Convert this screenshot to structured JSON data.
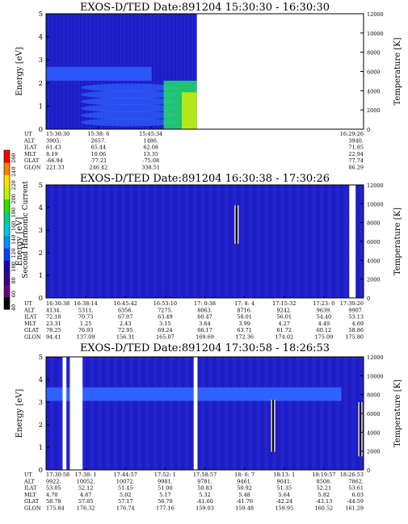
{
  "colors": {
    "panel_bg": "#2323cf",
    "panel_dark": "#1414a8",
    "band": "#2f62ff",
    "hot": "#22dd66",
    "white": "#ffffff",
    "black": "#000000"
  },
  "colorbar": {
    "title": "Second Harmonic Current",
    "ticks": [
      "40",
      "60",
      "80",
      "100",
      "120",
      "140",
      "160",
      "180",
      "200",
      "220",
      "240",
      "260"
    ],
    "colors": [
      "#000000",
      "#6a0080",
      "#3a0090",
      "#1a00b0",
      "#0040ff",
      "#0090ff",
      "#00c8e0",
      "#00d080",
      "#30e000",
      "#c0f000",
      "#ffe000",
      "#ff8000",
      "#ff0000"
    ]
  },
  "chart_data": [
    {
      "type": "heatmap",
      "title": "EXOS-D/TED  Date:891204  15:30:30 - 16:30:30",
      "ylabel": "Energy [eV]",
      "y2label": "Temperature [K]",
      "ylim": [
        0,
        5
      ],
      "yticks": [
        "0",
        "1",
        "2",
        "3",
        "4",
        "5"
      ],
      "y2lim": [
        0,
        12000
      ],
      "y2ticks": [
        "0",
        "2000",
        "4000",
        "6000",
        "8000",
        "10000",
        "12000"
      ],
      "data_fraction": 0.475,
      "ephemeris": [
        {
          "label": "UT",
          "values": [
            "15:30:30",
            "15:38: 6",
            "15:45:34",
            "16:29:26"
          ]
        },
        {
          "label": "ALT",
          "values": [
            "3905.",
            "2657.",
            "1486.",
            "3940."
          ]
        },
        {
          "label": "ILAT",
          "values": [
            "61.43",
            "65.44",
            "62.08",
            "71.85"
          ]
        },
        {
          "label": "MLT",
          "values": [
            "8.19",
            "10.06",
            "13.35",
            "22.94"
          ]
        },
        {
          "label": "GLAT",
          "values": [
            "-66.94",
            "-77.21",
            "-75.08",
            "77.74"
          ]
        },
        {
          "label": "GLON",
          "values": [
            "221.33",
            "246.42",
            "338.51",
            "86.29"
          ]
        }
      ],
      "ephemeris_positions": [
        0.0,
        0.165,
        0.33,
        1.0
      ],
      "gaps": [],
      "spikes": []
    },
    {
      "type": "heatmap",
      "title": "EXOS-D/TED  Date:891204  16:30:38 - 17:30:26",
      "ylabel": "Energy [eV]",
      "y2label": "Temperature [K]",
      "ylim": [
        0,
        5
      ],
      "yticks": [
        "0",
        "1",
        "2",
        "3",
        "4",
        "5"
      ],
      "y2lim": [
        0,
        12000
      ],
      "y2ticks": [
        "0",
        "2000",
        "4000",
        "6000",
        "8000",
        "10000",
        "12000"
      ],
      "data_fraction": 1.0,
      "ephemeris": [
        {
          "label": "UT",
          "values": [
            "16:30:38",
            "16:38:14",
            "16:45:42",
            "16:53:10",
            "17: 0:38",
            "17: 8: 4",
            "17:15:32",
            "17:23: 0",
            "17:30:26"
          ]
        },
        {
          "label": "ALT",
          "values": [
            "4134.",
            "5311.",
            "6356.",
            "7275.",
            "8063.",
            "8716.",
            "9242.",
            "9639.",
            "9907."
          ]
        },
        {
          "label": "ILAT",
          "values": [
            "72.18",
            "70.73",
            "67.07",
            "63.49",
            "60.47",
            "58.01",
            "56.01",
            "54.40",
            "53.13"
          ]
        },
        {
          "label": "MLT",
          "values": [
            "23.31",
            "1.25",
            "2.43",
            "3.15",
            "3.64",
            "3.99",
            "4.27",
            "4.49",
            "4.69"
          ]
        },
        {
          "label": "GLAT",
          "values": [
            "78.25",
            "76.93",
            "72.95",
            "69.24",
            "66.17",
            "63.71",
            "61.72",
            "60.12",
            "58.86"
          ]
        },
        {
          "label": "GLON",
          "values": [
            "94.41",
            "137.09",
            "156.31",
            "165.07",
            "169.69",
            "172.36",
            "174.02",
            "175.09",
            "175.80"
          ]
        }
      ],
      "gaps": [
        {
          "x": 0.955,
          "w": 0.02
        }
      ],
      "spikes": [
        {
          "x": 0.6,
          "y0": 2.4,
          "y1": 4.1
        }
      ]
    },
    {
      "type": "heatmap",
      "title": "EXOS-D/TED  Date:891204  17:30:58 - 18:26:53",
      "ylabel": "Energy [eV]",
      "y2label": "Temperature [K]",
      "ylim": [
        0,
        5
      ],
      "yticks": [
        "0",
        "1",
        "2",
        "3",
        "4",
        "5"
      ],
      "y2lim": [
        0,
        12000
      ],
      "y2ticks": [
        "0",
        "2000",
        "4000",
        "6000",
        "8000",
        "10000",
        "12000"
      ],
      "data_fraction": 1.0,
      "ephemeris": [
        {
          "label": "UT",
          "values": [
            "17:30:58",
            "17:38: 1",
            "17:44:57",
            "17:52: 1",
            "17:58:57",
            "18: 6: 7",
            "18:13: 1",
            "18:19:57",
            "18:26:53"
          ]
        },
        {
          "label": "ALT",
          "values": [
            "9922.",
            "10052.",
            "10072.",
            "9981.",
            "9781.",
            "9461.",
            "9041.",
            "8508.",
            "7862."
          ]
        },
        {
          "label": "ILAT",
          "values": [
            "53.05",
            "52.12",
            "51.45",
            "51.00",
            "50.83",
            "50.92",
            "51.35",
            "52.21",
            "53.61"
          ]
        },
        {
          "label": "MLT",
          "values": [
            "4.70",
            "4.87",
            "5.02",
            "5.17",
            "5.32",
            "5.48",
            "5.64",
            "5.82",
            "6.03"
          ]
        },
        {
          "label": "GLAT",
          "values": [
            "58.78",
            "57.85",
            "57.17",
            "56.70",
            "-41.60",
            "-41.76",
            "-42.24",
            "-43.13",
            "-44.59"
          ]
        },
        {
          "label": "GLON",
          "values": [
            "175.84",
            "176.32",
            "176.74",
            "177.16",
            "159.03",
            "159.48",
            "159.95",
            "160.52",
            "161.29"
          ]
        }
      ],
      "gaps": [
        {
          "x": 0.052,
          "w": 0.012
        },
        {
          "x": 0.075,
          "w": 0.04
        },
        {
          "x": 0.465,
          "w": 0.012
        }
      ],
      "spikes": [
        {
          "x": 0.715,
          "y0": 0.8,
          "y1": 3.1
        },
        {
          "x": 0.99,
          "y0": 0.6,
          "y1": 3.0
        }
      ]
    }
  ]
}
